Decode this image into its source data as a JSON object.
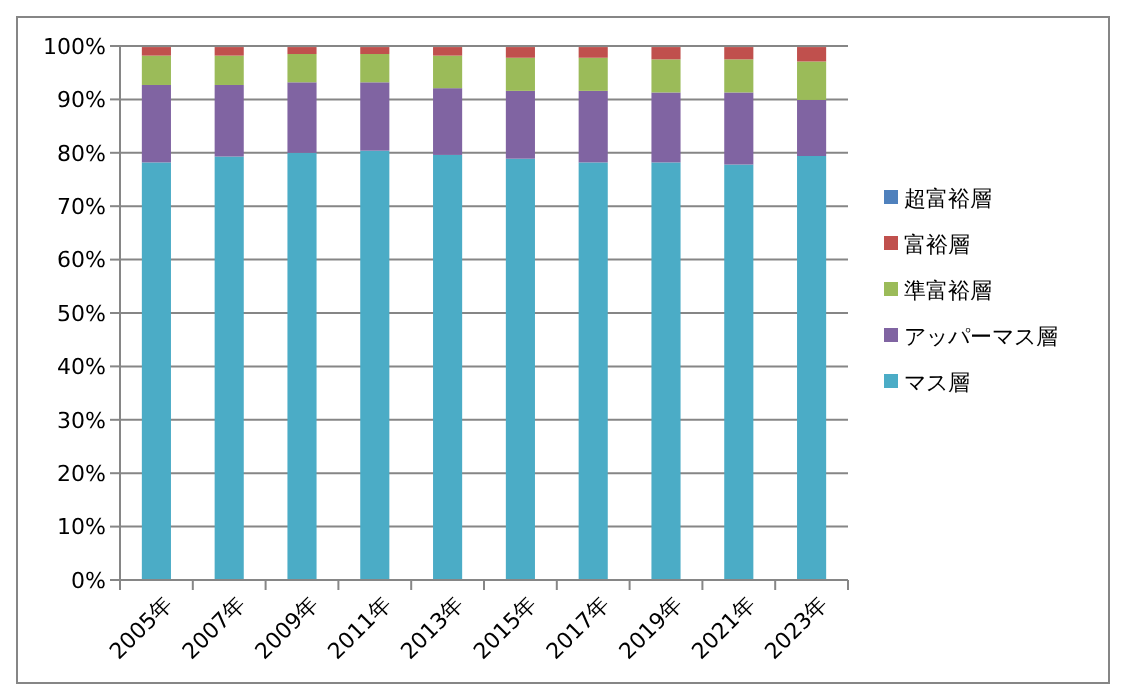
{
  "chart_data": {
    "type": "bar",
    "stacked": true,
    "categories": [
      "2005年",
      "2007年",
      "2009年",
      "2011年",
      "2013年",
      "2015年",
      "2017年",
      "2019年",
      "2021年",
      "2023年"
    ],
    "series": [
      {
        "name": "マス層",
        "color": "#4bacc6",
        "values": [
          78.2,
          79.3,
          80.0,
          80.4,
          79.6,
          78.9,
          78.2,
          78.2,
          77.8,
          79.4
        ]
      },
      {
        "name": "アッパーマス層",
        "color": "#8064a2",
        "values": [
          14.5,
          13.4,
          13.2,
          12.8,
          12.5,
          12.7,
          13.4,
          13.1,
          13.5,
          10.5
        ]
      },
      {
        "name": "準富裕層",
        "color": "#9bbb59",
        "values": [
          5.5,
          5.5,
          5.3,
          5.3,
          6.1,
          6.2,
          6.2,
          6.2,
          6.2,
          7.2
        ]
      },
      {
        "name": "富裕層",
        "color": "#c0504d",
        "values": [
          1.6,
          1.6,
          1.3,
          1.3,
          1.6,
          2.0,
          2.0,
          2.3,
          2.3,
          2.7
        ]
      },
      {
        "name": "超富裕層",
        "color": "#4f81bd",
        "values": [
          null,
          null,
          null,
          null,
          null,
          null,
          null,
          null,
          null,
          null
        ]
      }
    ],
    "ylim": [
      0,
      100
    ],
    "yticks": [
      {
        "value": 0,
        "label": "0%"
      },
      {
        "value": 10,
        "label": "10%"
      },
      {
        "value": 20,
        "label": "20%"
      },
      {
        "value": 30,
        "label": "30%"
      },
      {
        "value": 40,
        "label": "40%"
      },
      {
        "value": 50,
        "label": "50%"
      },
      {
        "value": 60,
        "label": "60%"
      },
      {
        "value": 70,
        "label": "70%"
      },
      {
        "value": 80,
        "label": "80%"
      },
      {
        "value": 90,
        "label": "90%"
      },
      {
        "value": 100,
        "label": "100%"
      }
    ],
    "grid": "y",
    "legend": "right"
  }
}
